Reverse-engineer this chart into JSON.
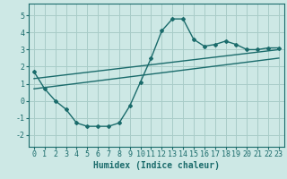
{
  "xlabel": "Humidex (Indice chaleur)",
  "bg_color": "#cde8e5",
  "grid_color": "#a8ccc8",
  "line_color": "#1a6b6b",
  "xlim": [
    -0.5,
    23.5
  ],
  "ylim": [
    -2.7,
    5.7
  ],
  "yticks": [
    -2,
    -1,
    0,
    1,
    2,
    3,
    4,
    5
  ],
  "xticks": [
    0,
    1,
    2,
    3,
    4,
    5,
    6,
    7,
    8,
    9,
    10,
    11,
    12,
    13,
    14,
    15,
    16,
    17,
    18,
    19,
    20,
    21,
    22,
    23
  ],
  "curve1_x": [
    0,
    1,
    2,
    3,
    4,
    5,
    6,
    7,
    8,
    9,
    10,
    11,
    12,
    13,
    14,
    15,
    16,
    17,
    18,
    19,
    20,
    21,
    22,
    23
  ],
  "curve1_y": [
    1.7,
    0.7,
    0.0,
    -0.5,
    -1.3,
    -1.5,
    -1.5,
    -1.5,
    -1.3,
    -0.3,
    1.1,
    2.5,
    4.1,
    4.8,
    4.8,
    3.6,
    3.2,
    3.3,
    3.5,
    3.3,
    3.0,
    3.0,
    3.1,
    3.1
  ],
  "line1_x": [
    0,
    23
  ],
  "line1_y": [
    0.7,
    2.5
  ],
  "line2_x": [
    0,
    23
  ],
  "line2_y": [
    1.3,
    3.0
  ],
  "xlabel_fontsize": 7,
  "tick_fontsize": 6
}
